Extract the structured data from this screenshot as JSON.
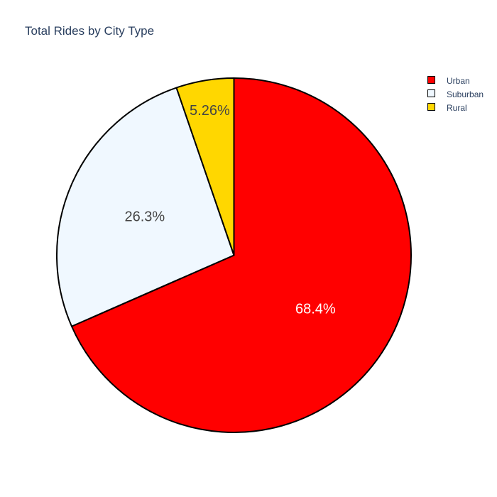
{
  "chart_data": {
    "type": "pie",
    "title": "Total Rides by City Type",
    "categories": [
      "Urban",
      "Suburban",
      "Rural"
    ],
    "values": [
      68.4,
      26.3,
      5.26
    ],
    "labels": [
      "68.4%",
      "26.3%",
      "5.26%"
    ],
    "colors": [
      "#ff0000",
      "#f0f8ff",
      "#ffd700"
    ],
    "label_colors": [
      "#ffffff",
      "#444444",
      "#444444"
    ],
    "legend_position": "top-right",
    "slice_border_color": "#000000"
  }
}
